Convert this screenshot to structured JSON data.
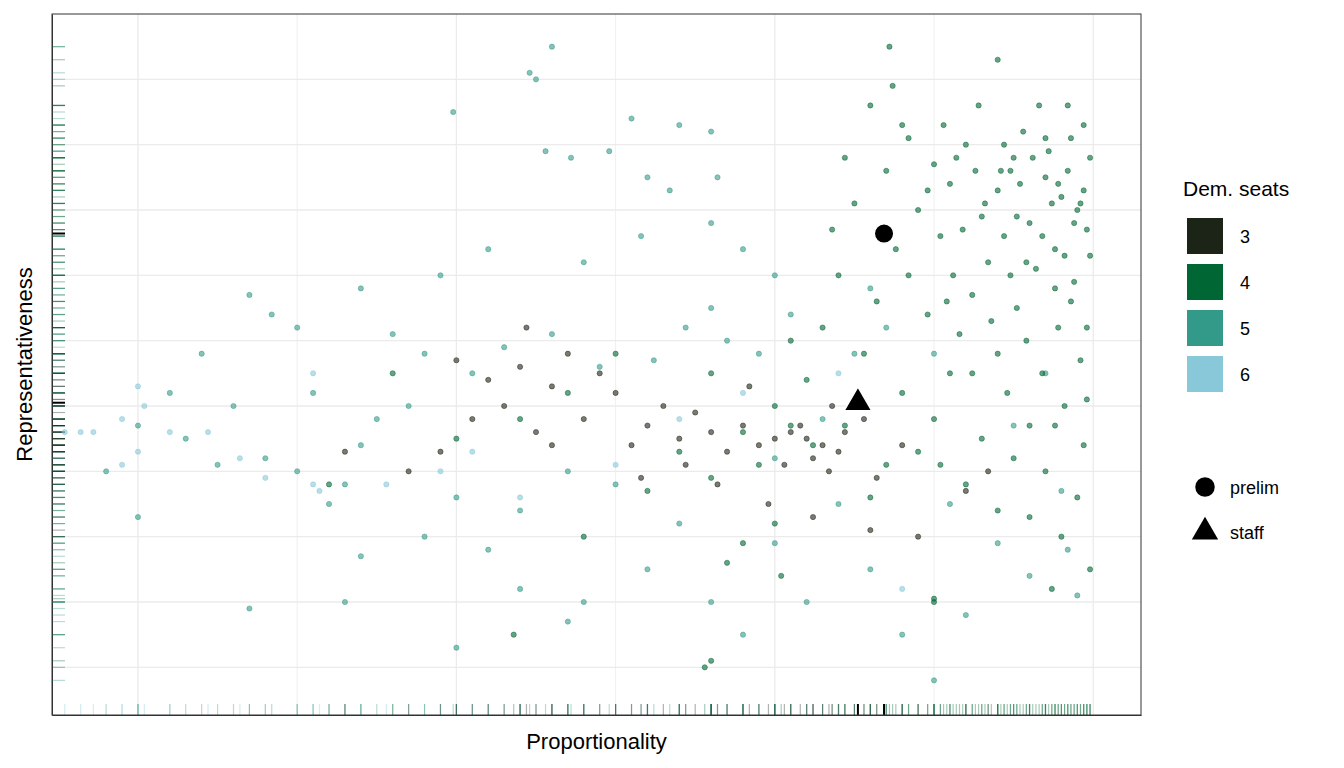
{
  "chart_data": {
    "type": "scatter",
    "x_label": "Proportionality",
    "y_label": "Representativeness",
    "legend_title": "Dem. seats",
    "legend": "right",
    "grid": true,
    "tick_labels": false,
    "xlim": [
      -0.327,
      0.015
    ],
    "ylim": [
      0.027,
      1.1
    ],
    "xticks": [
      -0.3,
      -0.25,
      -0.2,
      -0.15,
      -0.1,
      -0.05,
      0
    ],
    "yticks": [
      0.1,
      0.2,
      0.3,
      0.4,
      0.5,
      0.6,
      0.7,
      0.8,
      0.9,
      1.0
    ],
    "series": [
      {
        "name": "3",
        "color": "#1b2416",
        "x": [
          -0.09,
          -0.085,
          -0.095,
          -0.08,
          -0.1,
          -0.088,
          -0.092,
          -0.105,
          -0.078,
          -0.11,
          -0.083,
          -0.097,
          -0.115,
          -0.12,
          -0.125,
          -0.13,
          -0.135,
          -0.14,
          -0.15,
          -0.145,
          -0.16,
          -0.155,
          -0.17,
          -0.175,
          -0.18,
          -0.185,
          -0.19,
          -0.165,
          -0.2,
          -0.195,
          -0.17,
          -0.072,
          -0.068,
          -0.075,
          -0.06,
          -0.108,
          -0.118,
          -0.128,
          -0.142,
          -0.102,
          -0.088,
          -0.07,
          -0.205,
          -0.215,
          -0.235,
          -0.178,
          -0.04,
          -0.033,
          -0.055,
          -0.082
        ],
        "values": [
          0.45,
          0.44,
          0.46,
          0.43,
          0.45,
          0.42,
          0.47,
          0.44,
          0.46,
          0.47,
          0.4,
          0.41,
          0.43,
          0.46,
          0.49,
          0.45,
          0.5,
          0.47,
          0.52,
          0.44,
          0.48,
          0.55,
          0.53,
          0.46,
          0.56,
          0.5,
          0.54,
          0.58,
          0.57,
          0.48,
          0.44,
          0.48,
          0.39,
          0.51,
          0.44,
          0.53,
          0.38,
          0.41,
          0.39,
          0.35,
          0.33,
          0.31,
          0.43,
          0.4,
          0.43,
          0.62,
          0.37,
          0.4,
          0.3,
          0.5
        ]
      },
      {
        "name": "4",
        "color": "#006633",
        "x": [
          -0.01,
          -0.005,
          -0.02,
          -0.015,
          -0.03,
          -0.002,
          -0.025,
          -0.012,
          -0.035,
          -0.008,
          -0.04,
          -0.018,
          -0.028,
          -0.003,
          -0.045,
          -0.022,
          -0.05,
          -0.006,
          -0.033,
          -0.014,
          -0.055,
          -0.06,
          -0.038,
          -0.001,
          -0.048,
          -0.024,
          -0.011,
          -0.042,
          -0.03,
          -0.065,
          -0.058,
          -0.004,
          -0.016,
          -0.052,
          -0.07,
          -0.036,
          -0.062,
          -0.027,
          -0.045,
          -0.009,
          -0.068,
          -0.075,
          -0.02,
          -0.05,
          -0.035,
          -0.003,
          -0.08,
          -0.072,
          -0.06,
          -0.085,
          -0.09,
          -0.055,
          -0.015,
          -0.04,
          -0.005,
          -0.078,
          -0.095,
          -0.065,
          -0.088,
          -0.1,
          -0.03,
          -0.01,
          -0.02,
          -0.07,
          -0.11,
          -0.105,
          -0.12,
          -0.095,
          -0.13,
          -0.15,
          -0.14,
          -0.165,
          -0.18,
          -0.16,
          -0.115,
          -0.11,
          -0.1,
          -0.2,
          -0.22,
          -0.24,
          -0.122,
          -0.12,
          -0.05,
          -0.05,
          -0.038,
          -0.026,
          -0.007,
          -0.017,
          -0.078,
          -0.082,
          -0.063,
          -0.064,
          -0.03,
          -0.058,
          -0.002,
          -0.012,
          -0.044,
          -0.021,
          -0.032,
          -0.047,
          -0.006,
          -0.013,
          -0.023,
          -0.001,
          -0.037,
          -0.028,
          -0.016,
          -0.009,
          -0.041,
          -0.019,
          -0.003,
          -0.008,
          -0.052,
          -0.034,
          -0.011,
          -0.024,
          -0.004,
          -0.029,
          -0.015,
          -0.043,
          -0.021,
          -0.007,
          -0.046,
          -0.026,
          -0.002,
          -0.012,
          -0.048,
          -0.025,
          -0.013,
          -0.001,
          -0.098,
          -0.182,
          -0.12
        ],
        "values": [
          0.82,
          0.8,
          0.78,
          0.85,
          0.83,
          0.77,
          0.88,
          0.74,
          0.79,
          0.86,
          0.9,
          0.71,
          0.76,
          0.83,
          0.84,
          0.92,
          0.87,
          0.69,
          0.72,
          0.89,
          0.8,
          0.93,
          0.67,
          0.73,
          0.76,
          0.65,
          0.62,
          0.61,
          0.58,
          0.86,
          0.7,
          0.57,
          0.55,
          0.64,
          0.96,
          0.96,
          0.74,
          0.52,
          0.55,
          0.5,
          0.66,
          0.81,
          0.47,
          0.48,
          0.45,
          0.44,
          0.7,
          0.58,
          0.52,
          0.62,
          0.54,
          0.43,
          0.4,
          0.38,
          0.36,
          0.47,
          0.47,
          0.41,
          0.44,
          0.5,
          0.34,
          0.3,
          0.33,
          0.36,
          0.46,
          0.41,
          0.55,
          0.6,
          0.43,
          0.58,
          0.37,
          0.52,
          0.48,
          0.3,
          0.26,
          0.29,
          0.32,
          0.45,
          0.55,
          0.38,
          0.1,
          0.11,
          0.2,
          0.205,
          0.55,
          0.86,
          0.91,
          0.96,
          0.88,
          0.77,
          0.99,
          1.05,
          1.03,
          0.91,
          0.62,
          0.68,
          0.7,
          0.6,
          0.63,
          0.93,
          0.78,
          0.81,
          0.84,
          0.88,
          0.86,
          0.9,
          0.76,
          0.73,
          0.77,
          0.88,
          0.93,
          0.96,
          0.83,
          0.81,
          0.84,
          0.79,
          0.81,
          0.86,
          0.91,
          0.88,
          0.72,
          0.66,
          0.66,
          0.7,
          0.51,
          0.47,
          0.41,
          0.42,
          0.22,
          0.25,
          0.24,
          0.15,
          0.39
        ]
      },
      {
        "name": "5",
        "color": "#339988",
        "x": [
          -0.17,
          -0.175,
          -0.177,
          -0.201,
          -0.172,
          -0.164,
          -0.152,
          -0.145,
          -0.14,
          -0.13,
          -0.12,
          -0.118,
          -0.133,
          -0.12,
          -0.11,
          -0.142,
          -0.16,
          -0.19,
          -0.205,
          -0.23,
          -0.25,
          -0.265,
          -0.258,
          -0.28,
          -0.27,
          -0.29,
          -0.26,
          -0.3,
          -0.285,
          -0.275,
          -0.25,
          -0.24,
          -0.225,
          -0.215,
          -0.2,
          -0.21,
          -0.19,
          -0.23,
          -0.18,
          -0.16,
          -0.14,
          -0.13,
          -0.15,
          -0.12,
          -0.11,
          -0.1,
          -0.09,
          -0.08,
          -0.07,
          -0.06,
          -0.04,
          -0.02,
          -0.005,
          -0.01,
          -0.03,
          -0.075,
          -0.065,
          -0.095,
          -0.105,
          -0.115,
          -0.128,
          -0.138,
          -0.155,
          -0.17,
          -0.185,
          -0.195,
          -0.21,
          -0.22,
          -0.23,
          -0.245,
          -0.18,
          -0.165,
          -0.1,
          -0.085,
          -0.07,
          -0.05,
          -0.045,
          -0.025,
          -0.015,
          -0.008,
          -0.2,
          -0.165,
          -0.265,
          -0.235,
          -0.235,
          -0.3,
          -0.31,
          -0.12,
          -0.1,
          -0.05
        ],
        "values": [
          1.05,
          1.0,
          1.01,
          0.95,
          0.89,
          0.88,
          0.89,
          0.94,
          0.85,
          0.93,
          0.92,
          0.85,
          0.83,
          0.78,
          0.74,
          0.76,
          0.72,
          0.74,
          0.7,
          0.68,
          0.62,
          0.67,
          0.64,
          0.58,
          0.5,
          0.52,
          0.42,
          0.47,
          0.45,
          0.41,
          0.4,
          0.35,
          0.48,
          0.5,
          0.36,
          0.3,
          0.28,
          0.27,
          0.22,
          0.2,
          0.25,
          0.32,
          0.38,
          0.2,
          0.15,
          0.29,
          0.2,
          0.35,
          0.25,
          0.15,
          0.18,
          0.24,
          0.21,
          0.37,
          0.29,
          0.58,
          0.62,
          0.64,
          0.58,
          0.6,
          0.62,
          0.57,
          0.56,
          0.61,
          0.59,
          0.55,
          0.58,
          0.61,
          0.44,
          0.52,
          0.34,
          0.4,
          0.42,
          0.48,
          0.68,
          0.58,
          0.35,
          0.47,
          0.55,
          0.28,
          0.13,
          0.17,
          0.19,
          0.2,
          0.38,
          0.33,
          0.4,
          0.65,
          0.7,
          0.08
        ]
      },
      {
        "name": "6",
        "color": "#88c8d8",
        "x": [
          -0.323,
          -0.314,
          -0.305,
          -0.298,
          -0.29,
          -0.3,
          -0.305,
          -0.318,
          -0.278,
          -0.268,
          -0.26,
          -0.245,
          -0.243,
          -0.222,
          -0.205,
          -0.195,
          -0.18,
          -0.15,
          -0.11,
          -0.13,
          -0.08,
          -0.245,
          -0.3,
          -0.06
        ],
        "values": [
          0.46,
          0.46,
          0.48,
          0.5,
          0.46,
          0.43,
          0.41,
          0.46,
          0.46,
          0.42,
          0.39,
          0.38,
          0.37,
          0.38,
          0.4,
          0.43,
          0.36,
          0.41,
          0.52,
          0.48,
          0.55,
          0.55,
          0.53,
          0.22
        ]
      },
      {
        "name": "prelim",
        "color": "#000000",
        "marker": "circle",
        "x": [
          -0.0657
        ],
        "values": [
          0.764
        ]
      },
      {
        "name": "staff",
        "color": "#000000",
        "marker": "triangle",
        "x": [
          -0.0739
        ],
        "values": [
          0.505
        ]
      }
    ]
  }
}
